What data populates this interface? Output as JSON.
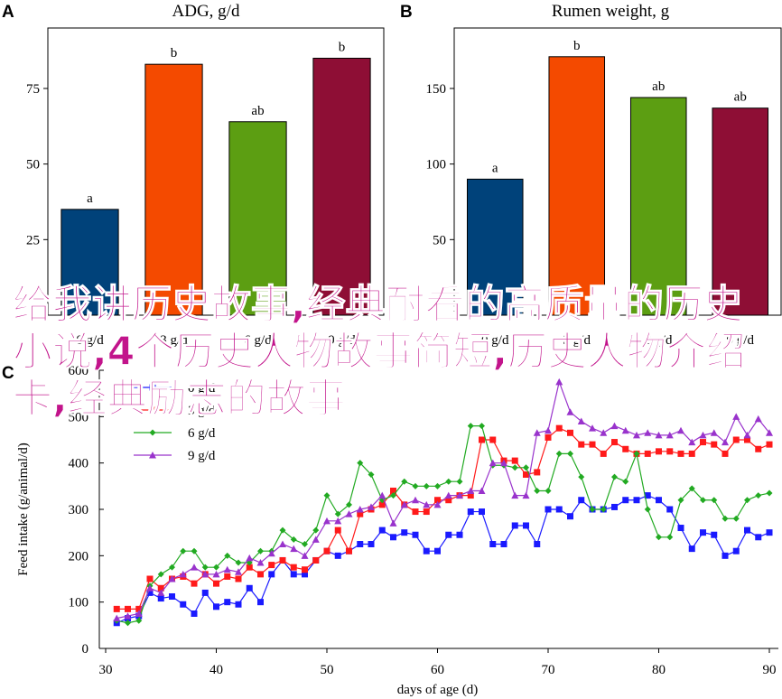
{
  "chart_data": [
    {
      "panel": "A",
      "type": "bar",
      "title": "ADG, g/d",
      "categories": [
        "0 g/d",
        "3 g/d",
        "6 g/d",
        "9 g/d"
      ],
      "values": [
        35,
        83,
        64,
        85
      ],
      "letters": [
        "a",
        "b",
        "ab",
        "b"
      ],
      "colors": [
        "#00427a",
        "#f44a00",
        "#5c9e12",
        "#8e0e35"
      ],
      "ylim": [
        0,
        95
      ],
      "yticks": [
        25,
        50,
        75
      ]
    },
    {
      "panel": "B",
      "type": "bar",
      "title": "Rumen weight, g",
      "categories": [
        "0 g/d",
        "3 g/d",
        "6 g/d",
        "9 g/d"
      ],
      "values": [
        90,
        171,
        144,
        137
      ],
      "letters": [
        "a",
        "b",
        "ab",
        "ab"
      ],
      "colors": [
        "#00427a",
        "#f44a00",
        "#5c9e12",
        "#8e0e35"
      ],
      "ylim": [
        0,
        190
      ],
      "yticks": [
        50,
        100,
        150
      ]
    },
    {
      "panel": "C",
      "type": "line",
      "xlabel": "days of age (d)",
      "ylabel": "Feed intake (g/animal/d)",
      "xlim": [
        30,
        90
      ],
      "ylim": [
        0,
        600
      ],
      "xticks": [
        30,
        40,
        50,
        60,
        70,
        80,
        90
      ],
      "yticks": [
        0,
        100,
        200,
        300,
        400,
        500,
        600
      ],
      "x": [
        31,
        32,
        33,
        34,
        35,
        36,
        37,
        38,
        39,
        40,
        41,
        42,
        43,
        44,
        45,
        46,
        47,
        48,
        49,
        50,
        51,
        52,
        53,
        54,
        55,
        56,
        57,
        58,
        59,
        60,
        61,
        62,
        63,
        64,
        65,
        66,
        67,
        68,
        69,
        70,
        71,
        72,
        73,
        74,
        75,
        76,
        77,
        78,
        79,
        80,
        81,
        82,
        83,
        84,
        85,
        86,
        87,
        88,
        89,
        90
      ],
      "series": [
        {
          "name": "0 g/d",
          "color": "#1a1aff",
          "marker": "square",
          "values": [
            55,
            65,
            70,
            120,
            108,
            112,
            95,
            75,
            120,
            90,
            100,
            95,
            130,
            100,
            160,
            190,
            160,
            160,
            190,
            210,
            200,
            210,
            225,
            225,
            255,
            240,
            250,
            245,
            210,
            210,
            245,
            245,
            295,
            295,
            225,
            225,
            265,
            265,
            225,
            300,
            300,
            285,
            320,
            300,
            300,
            305,
            320,
            320,
            330,
            320,
            300,
            260,
            215,
            250,
            245,
            200,
            210,
            255,
            240,
            250
          ]
        },
        {
          "name": "3 g/d",
          "color": "#ff1a1a",
          "marker": "square",
          "values": [
            85,
            85,
            85,
            150,
            130,
            150,
            155,
            140,
            160,
            140,
            155,
            150,
            175,
            160,
            180,
            190,
            175,
            170,
            190,
            210,
            255,
            210,
            290,
            300,
            310,
            340,
            310,
            295,
            295,
            320,
            320,
            330,
            330,
            450,
            450,
            405,
            405,
            375,
            380,
            455,
            475,
            465,
            440,
            440,
            420,
            445,
            430,
            420,
            420,
            425,
            425,
            420,
            420,
            445,
            440,
            420,
            450,
            450,
            430,
            440
          ]
        },
        {
          "name": "6 g/d",
          "color": "#22aa22",
          "marker": "diamond",
          "values": [
            60,
            55,
            60,
            135,
            160,
            175,
            210,
            210,
            175,
            175,
            200,
            185,
            185,
            210,
            210,
            255,
            235,
            225,
            255,
            330,
            290,
            310,
            400,
            375,
            320,
            330,
            360,
            350,
            350,
            350,
            360,
            360,
            480,
            480,
            395,
            395,
            390,
            390,
            340,
            340,
            420,
            420,
            370,
            300,
            300,
            370,
            360,
            420,
            300,
            240,
            240,
            320,
            345,
            320,
            320,
            280,
            280,
            320,
            330,
            335
          ]
        },
        {
          "name": "9 g/d",
          "color": "#9933cc",
          "marker": "triangle",
          "values": [
            65,
            70,
            75,
            130,
            120,
            150,
            160,
            175,
            160,
            160,
            170,
            165,
            195,
            185,
            205,
            225,
            215,
            200,
            235,
            275,
            275,
            290,
            300,
            305,
            330,
            270,
            310,
            320,
            310,
            310,
            330,
            330,
            340,
            340,
            400,
            400,
            330,
            330,
            465,
            470,
            575,
            510,
            490,
            475,
            465,
            480,
            470,
            460,
            465,
            460,
            460,
            470,
            445,
            460,
            465,
            445,
            500,
            460,
            495,
            465
          ]
        }
      ]
    }
  ],
  "overlay_text": "给我讲历史故事,经典耐看的高质量的历史小说,4个历史人物故事简短,历史人物介绍卡,经典励志的故事"
}
